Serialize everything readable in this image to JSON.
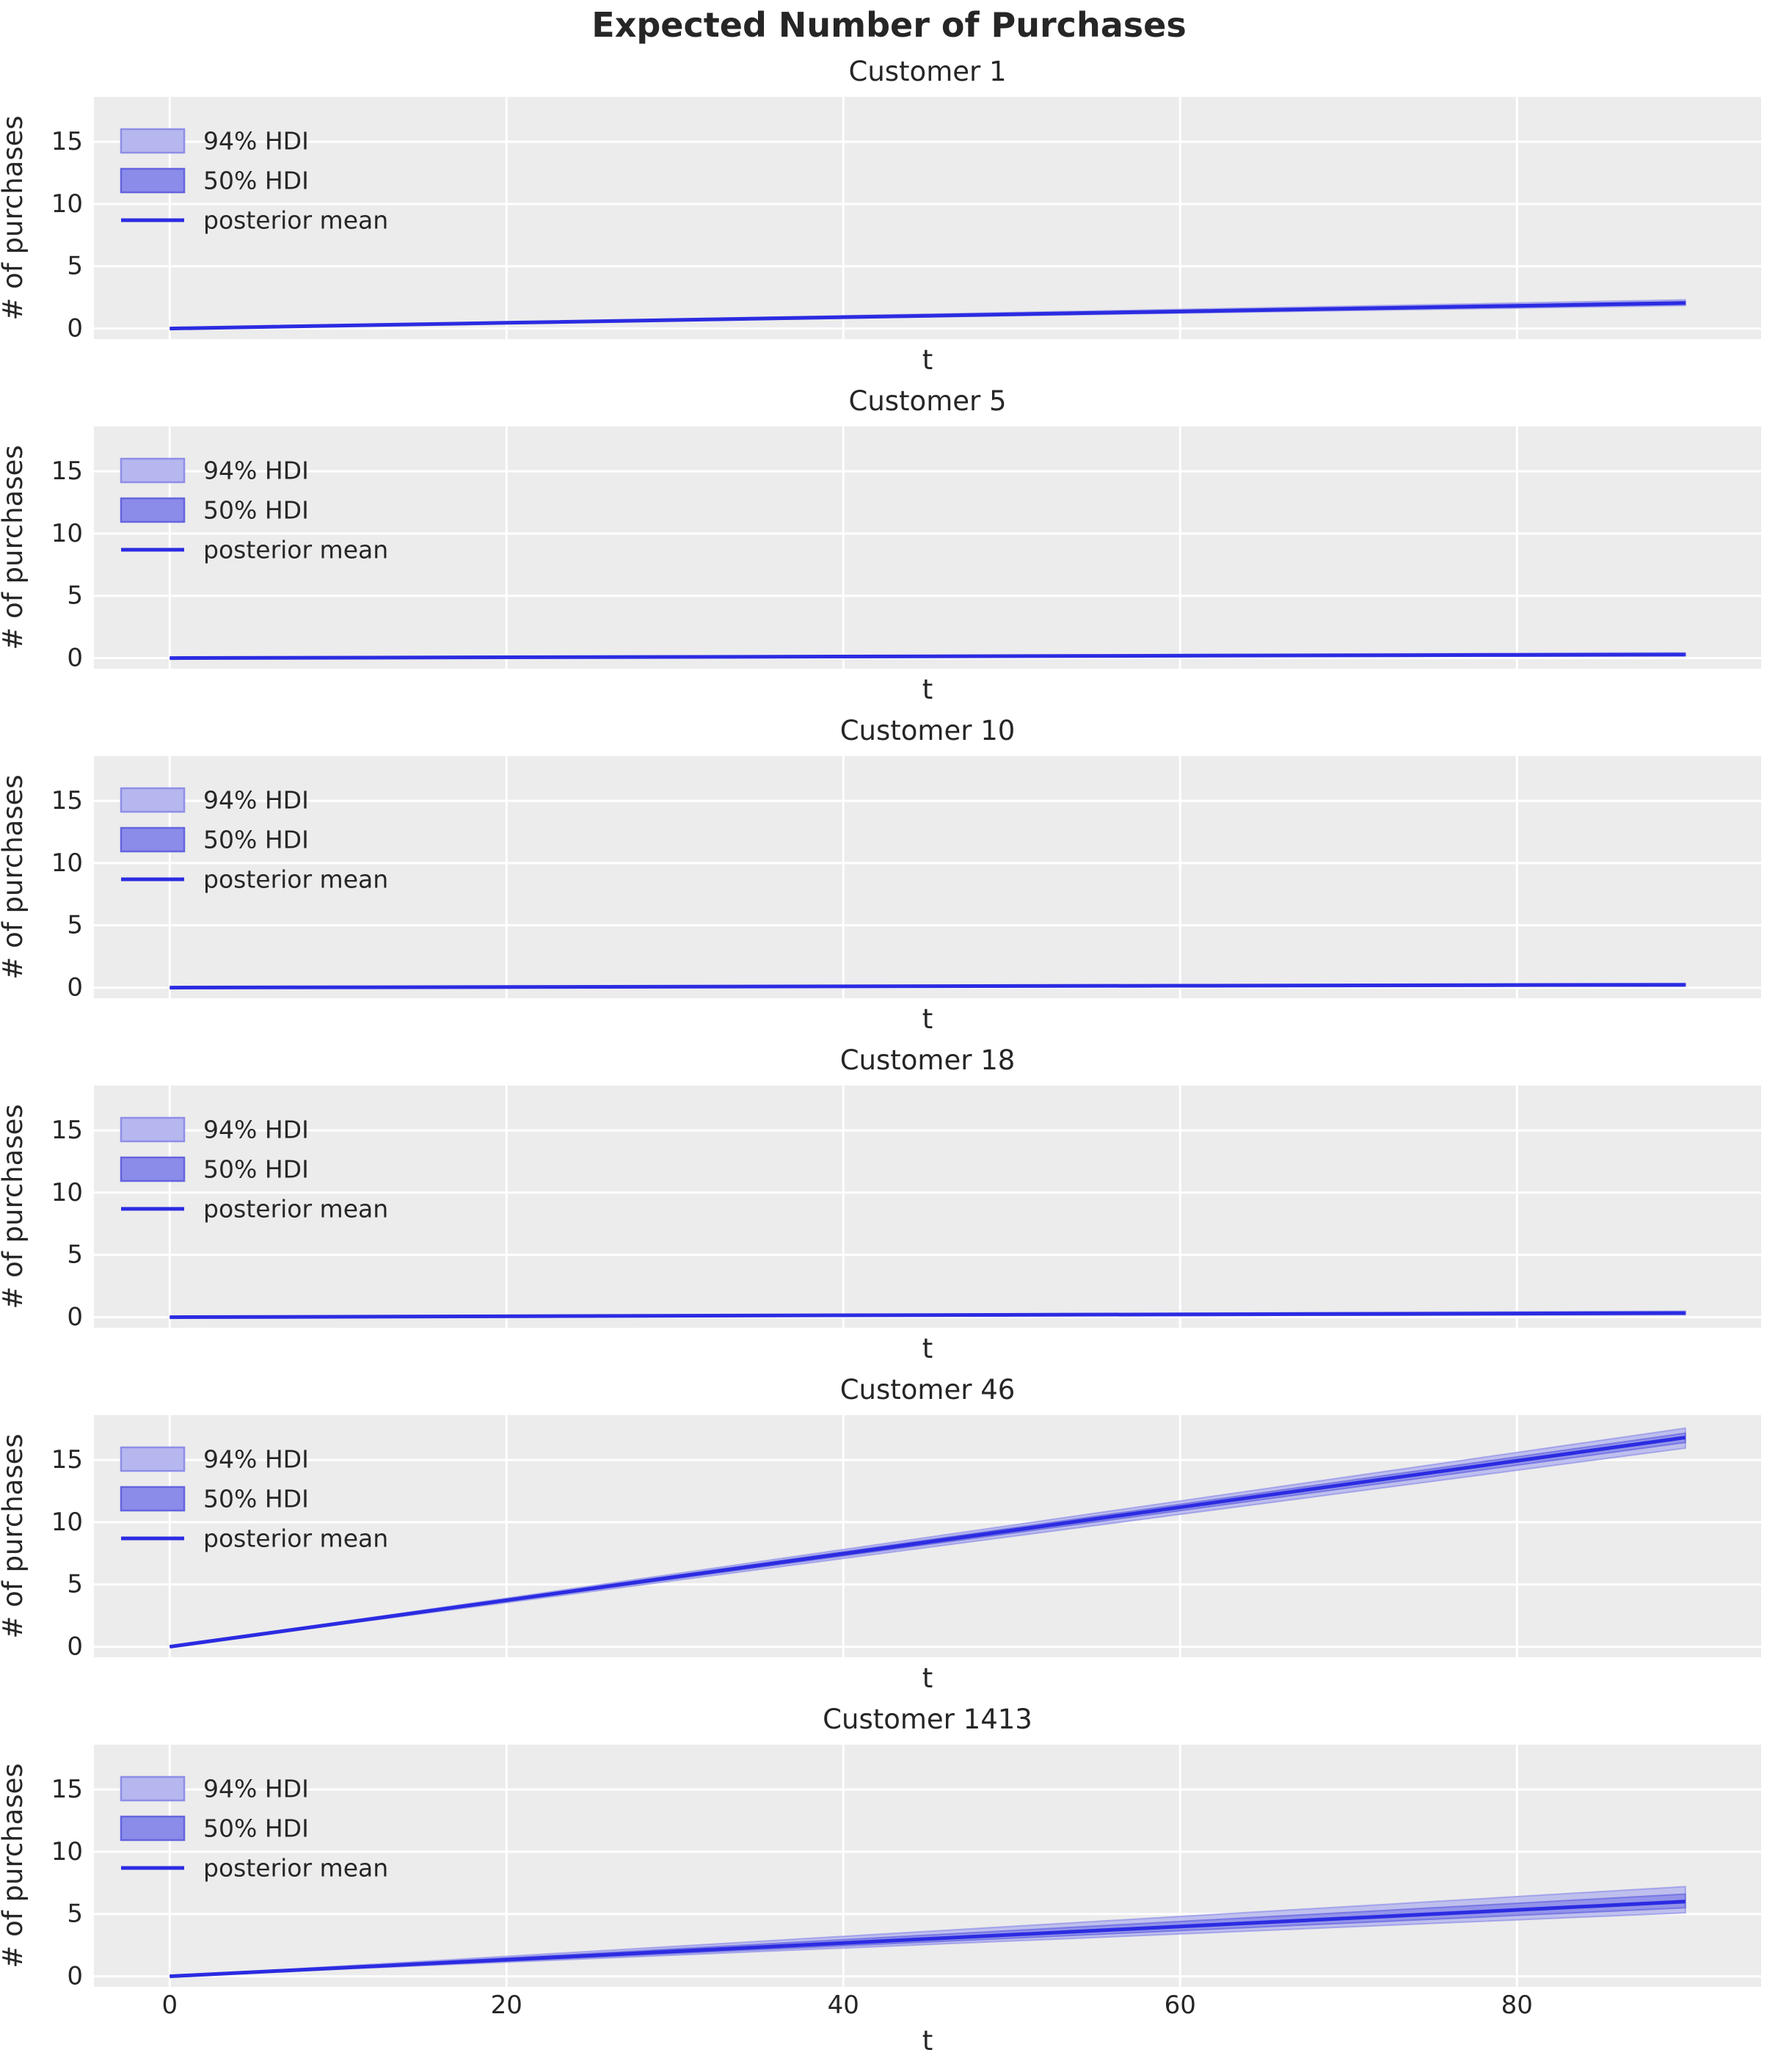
{
  "chart_data": {
    "type": "line",
    "figure_title": "Expected Number of Purchases",
    "xlabel": "t",
    "ylabel": "# of purchases",
    "xticks": [
      0,
      20,
      40,
      60,
      80
    ],
    "yticks": [
      0,
      5,
      10,
      15
    ],
    "xlim": [
      -4.5,
      94.5
    ],
    "ylim": [
      -0.85,
      18.6
    ],
    "grid": true,
    "legend": {
      "position": "upper-left",
      "items": [
        {
          "label": "94% HDI",
          "type": "patch"
        },
        {
          "label": "50% HDI",
          "type": "patch"
        },
        {
          "label": "posterior mean",
          "type": "line"
        }
      ]
    },
    "x": [
      0,
      20,
      40,
      60,
      80,
      90
    ],
    "subplots": [
      {
        "title": "Customer 1",
        "mean": [
          0,
          0.46,
          0.91,
          1.37,
          1.82,
          2.05
        ],
        "hdi94_end": [
          1.85,
          2.3
        ],
        "hdi50_end": [
          1.95,
          2.15
        ]
      },
      {
        "title": "Customer 5",
        "mean": [
          0,
          0.06,
          0.12,
          0.19,
          0.25,
          0.28
        ],
        "hdi94_end": [
          0.18,
          0.42
        ],
        "hdi50_end": [
          0.23,
          0.33
        ]
      },
      {
        "title": "Customer 10",
        "mean": [
          0,
          0.05,
          0.1,
          0.15,
          0.2,
          0.22
        ],
        "hdi94_end": [
          0.13,
          0.34
        ],
        "hdi50_end": [
          0.17,
          0.27
        ]
      },
      {
        "title": "Customer 18",
        "mean": [
          0,
          0.07,
          0.15,
          0.22,
          0.29,
          0.33
        ],
        "hdi94_end": [
          0.2,
          0.48
        ],
        "hdi50_end": [
          0.26,
          0.4
        ]
      },
      {
        "title": "Customer 46",
        "mean": [
          0,
          3.73,
          7.47,
          11.2,
          14.93,
          16.8
        ],
        "hdi94_end": [
          15.95,
          17.55
        ],
        "hdi50_end": [
          16.4,
          17.15
        ]
      },
      {
        "title": "Customer 1413",
        "mean": [
          0,
          1.33,
          2.67,
          4.0,
          5.33,
          6.0
        ],
        "hdi94_end": [
          5.1,
          7.2
        ],
        "hdi50_end": [
          5.5,
          6.6
        ]
      }
    ],
    "colors": {
      "plot_bg": "#ececec",
      "grid": "#ffffff",
      "mean_line": "#2b2be2",
      "hdi94_fill": "#b7b7ef",
      "hdi94_edge": "#8e8ee8",
      "hdi50_fill": "#8b8be9",
      "hdi50_edge": "#6464e0",
      "text": "#262626"
    }
  }
}
